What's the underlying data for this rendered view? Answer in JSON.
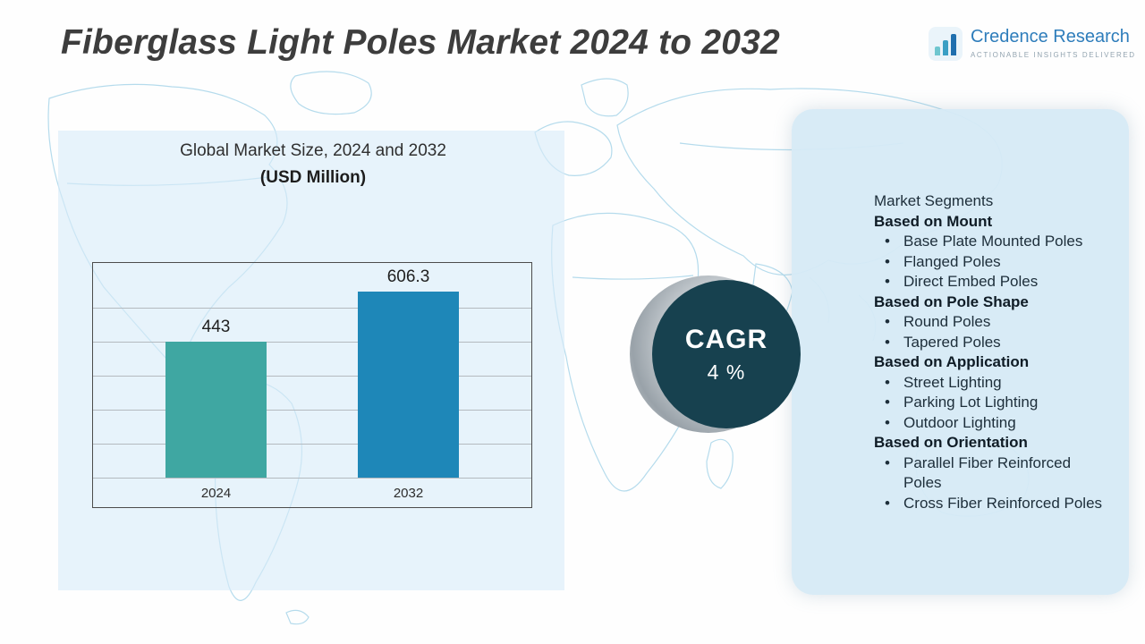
{
  "title": "Fiberglass Light Poles Market 2024 to 2032",
  "logo": {
    "name": "Credence Research",
    "tagline": "ACTIONABLE INSIGHTS DELIVERED"
  },
  "chart_data": {
    "type": "bar",
    "title": "Global Market Size, 2024 and 2032",
    "subtitle": "(USD Million)",
    "categories": [
      "2024",
      "2032"
    ],
    "values": [
      443,
      606.3
    ],
    "bar_colors": [
      "#3fa7a2",
      "#1e87b8"
    ],
    "xlabel": "",
    "ylabel": "",
    "ylim": [
      0,
      700
    ],
    "grid": true,
    "legend_position": "none"
  },
  "cagr": {
    "label": "CAGR",
    "value": "4 %"
  },
  "segments": {
    "title": "Market Segments",
    "groups": [
      {
        "heading": "Based on Mount",
        "items": [
          "Base Plate Mounted Poles",
          "Flanged Poles",
          "Direct Embed Poles"
        ]
      },
      {
        "heading": "Based on Pole Shape",
        "items": [
          "Round Poles",
          "Tapered Poles"
        ]
      },
      {
        "heading": "Based on Application",
        "items": [
          "Street Lighting",
          "Parking Lot Lighting",
          "Outdoor Lighting"
        ]
      },
      {
        "heading": "Based on Orientation",
        "items": [
          "Parallel Fiber Reinforced Poles",
          "Cross Fiber Reinforced Poles"
        ]
      }
    ]
  },
  "colors": {
    "accent_teal": "#3fa7a2",
    "accent_blue": "#1e87b8",
    "cagr_circle": "#17414f",
    "panel_bg": "#d6eaf6",
    "map_line": "#a9d6ea",
    "brand_blue": "#2e7dbb"
  }
}
